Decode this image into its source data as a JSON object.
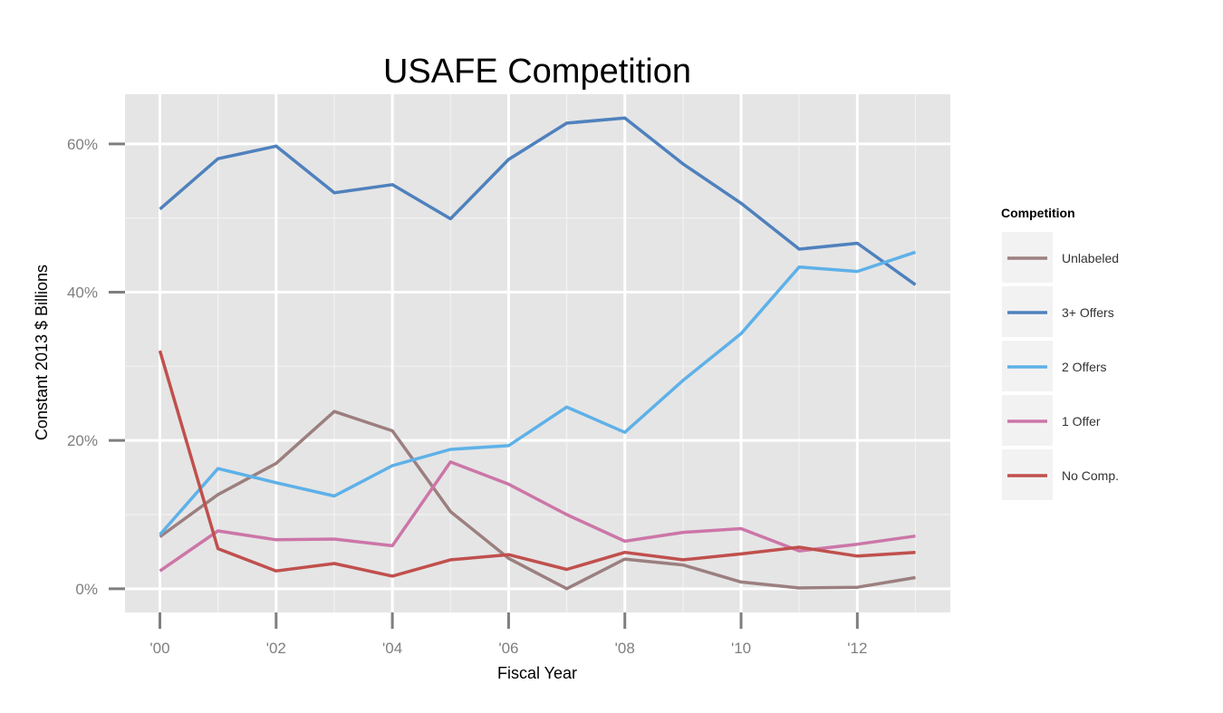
{
  "chart_data": {
    "type": "line",
    "title": "USAFE Competition",
    "xlabel": "Fiscal Year",
    "ylabel": "Constant 2013 $ Billions",
    "x": [
      2000,
      2001,
      2002,
      2003,
      2004,
      2005,
      2006,
      2007,
      2008,
      2009,
      2010,
      2011,
      2012,
      2013
    ],
    "x_ticks": [
      2000,
      2002,
      2004,
      2006,
      2008,
      2010,
      2012
    ],
    "x_tick_labels": [
      "'00",
      "'02",
      "'04",
      "'06",
      "'08",
      "'10",
      "'12"
    ],
    "xlim": [
      1999.4,
      2013.6
    ],
    "y_ticks": [
      0,
      20,
      40,
      60
    ],
    "y_tick_labels": [
      "0%",
      "20%",
      "40%",
      "60%"
    ],
    "ylim": [
      -3.2,
      66.7
    ],
    "grid": true,
    "legend": {
      "title": "Competition",
      "position": "right"
    },
    "series": [
      {
        "name": "Unlabeled",
        "color": "#9c7f7f",
        "values": [
          7.0,
          12.7,
          16.9,
          23.9,
          21.3,
          10.4,
          4.1,
          0.0,
          4.0,
          3.2,
          0.9,
          0.1,
          0.2,
          1.5
        ]
      },
      {
        "name": "3+ Offers",
        "color": "#4f81bd",
        "values": [
          51.2,
          58.0,
          59.7,
          53.4,
          54.5,
          49.9,
          57.9,
          62.8,
          63.5,
          57.3,
          52.0,
          45.8,
          46.6,
          41.0
        ]
      },
      {
        "name": "2 Offers",
        "color": "#5eb1e8",
        "values": [
          7.3,
          16.2,
          14.3,
          12.5,
          16.6,
          18.8,
          19.3,
          24.5,
          21.1,
          28.1,
          34.4,
          43.4,
          42.8,
          45.4
        ]
      },
      {
        "name": "1 Offer",
        "color": "#cc76a8",
        "values": [
          2.4,
          7.8,
          6.6,
          6.7,
          5.8,
          17.1,
          14.1,
          10.0,
          6.4,
          7.6,
          8.1,
          5.1,
          6.0,
          7.1
        ]
      },
      {
        "name": "No Comp.",
        "color": "#c0504d",
        "values": [
          32.1,
          5.4,
          2.4,
          3.4,
          1.7,
          3.9,
          4.6,
          2.6,
          4.9,
          3.9,
          4.7,
          5.6,
          4.4,
          4.9
        ]
      }
    ]
  }
}
